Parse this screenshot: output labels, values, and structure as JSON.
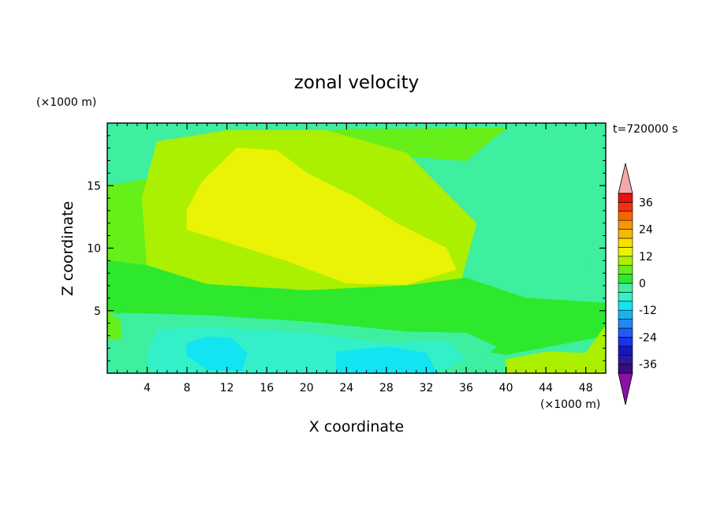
{
  "chart_data": {
    "type": "heatmap",
    "title": "zonal velocity",
    "xlabel": "X coordinate",
    "ylabel": "Z coordinate",
    "x_unit": "(×1000 m)",
    "y_unit": "(×1000 m)",
    "time_label": "t=720000 s",
    "xlim": [
      0,
      50
    ],
    "ylim": [
      0,
      20
    ],
    "x_ticks": [
      4,
      8,
      12,
      16,
      20,
      24,
      28,
      32,
      36,
      40,
      44,
      48
    ],
    "y_ticks": [
      5,
      10,
      15
    ],
    "colorbar": {
      "levels": [
        -40,
        -36,
        -32,
        -28,
        -24,
        -20,
        -16,
        -12,
        -8,
        -4,
        0,
        4,
        8,
        12,
        16,
        20,
        24,
        28,
        32,
        36,
        40
      ],
      "labels": [
        -36,
        -24,
        -12,
        0,
        12,
        24,
        36
      ],
      "colors": [
        "#3a0a80",
        "#2a1a9a",
        "#1418c0",
        "#1a32e8",
        "#1e5cf5",
        "#1e8af5",
        "#15b4f0",
        "#12e4f2",
        "#33f0c8",
        "#3fefa0",
        "#2ee82e",
        "#66ef18",
        "#aaf000",
        "#eaf205",
        "#f8e000",
        "#f8b800",
        "#f89600",
        "#f86400",
        "#f53010",
        "#e81010"
      ],
      "under_color": "#8a10a8",
      "over_color": "#f4a8a8"
    },
    "regions": [
      {
        "name": "upper-band-light-green",
        "value": 4,
        "points": [
          [
            0,
            15
          ],
          [
            4,
            15.5
          ],
          [
            10,
            18.5
          ],
          [
            24,
            19.5
          ],
          [
            40,
            19.6
          ],
          [
            36,
            17
          ],
          [
            28,
            17.5
          ],
          [
            18,
            16
          ],
          [
            10,
            12
          ],
          [
            6,
            11
          ],
          [
            4,
            8
          ],
          [
            0,
            9
          ]
        ]
      },
      {
        "name": "left-light-green-lobe",
        "value": 4,
        "points": [
          [
            0,
            8.5
          ],
          [
            1.5,
            8
          ],
          [
            1.3,
            5
          ],
          [
            0,
            4.5
          ]
        ]
      },
      {
        "name": "yellow-green-band",
        "value": 8,
        "points": [
          [
            3.5,
            14
          ],
          [
            5,
            18.5
          ],
          [
            12,
            19.4
          ],
          [
            22,
            19.4
          ],
          [
            30,
            17.6
          ],
          [
            37,
            12
          ],
          [
            35.5,
            7.5
          ],
          [
            30,
            6.7
          ],
          [
            24,
            6.3
          ],
          [
            18,
            6.8
          ],
          [
            10,
            7
          ],
          [
            4,
            8.5
          ]
        ]
      },
      {
        "name": "yellow-core",
        "value": 12,
        "points": [
          [
            8,
            13
          ],
          [
            9.5,
            15.3
          ],
          [
            13,
            18
          ],
          [
            17,
            17.8
          ],
          [
            20,
            16
          ],
          [
            25,
            14
          ],
          [
            29,
            12
          ],
          [
            34,
            10
          ],
          [
            35,
            8.3
          ],
          [
            30,
            7.1
          ],
          [
            24,
            7.2
          ],
          [
            18,
            9
          ],
          [
            12,
            10.5
          ],
          [
            8,
            11.5
          ]
        ]
      },
      {
        "name": "mid-green-belt",
        "value": 0,
        "points": [
          [
            0,
            9
          ],
          [
            4,
            8.6
          ],
          [
            10,
            7.1
          ],
          [
            20,
            6.6
          ],
          [
            30,
            7
          ],
          [
            36,
            7.6
          ],
          [
            42,
            6
          ],
          [
            50,
            5.6
          ],
          [
            50,
            3
          ],
          [
            40,
            1.5
          ],
          [
            30,
            2.6
          ],
          [
            20,
            3.8
          ],
          [
            10,
            4.5
          ],
          [
            2,
            4.6
          ],
          [
            0,
            5
          ]
        ]
      },
      {
        "name": "lower-right-yellow-green",
        "value": 8,
        "points": [
          [
            40,
            1.1
          ],
          [
            44,
            1.7
          ],
          [
            48,
            1.6
          ],
          [
            50,
            3.8
          ],
          [
            50,
            0
          ],
          [
            40,
            0
          ]
        ]
      },
      {
        "name": "lower-left-light-green-pocket",
        "value": 4,
        "points": [
          [
            0,
            4.6
          ],
          [
            1.5,
            4.3
          ],
          [
            1.3,
            2.7
          ],
          [
            0,
            2.8
          ]
        ]
      },
      {
        "name": "cyan-green-lower-layer",
        "value": -4,
        "points": [
          [
            1.3,
            4.8
          ],
          [
            10,
            4.6
          ],
          [
            20,
            4.1
          ],
          [
            30,
            3.3
          ],
          [
            36,
            3.2
          ],
          [
            39,
            2.1
          ],
          [
            37,
            0.7
          ],
          [
            30,
            0.9
          ],
          [
            20,
            1.1
          ],
          [
            10,
            1.2
          ],
          [
            3,
            1.1
          ],
          [
            1.5,
            2.5
          ]
        ]
      },
      {
        "name": "cyan-lower-layer",
        "value": -8,
        "points": [
          [
            5,
            3.5
          ],
          [
            10,
            3.7
          ],
          [
            20,
            3.2
          ],
          [
            28,
            2.4
          ],
          [
            34,
            2.6
          ],
          [
            36,
            1.2
          ],
          [
            33,
            0
          ],
          [
            4.5,
            0
          ],
          [
            4,
            1.4
          ]
        ]
      },
      {
        "name": "light-blue-blob-left",
        "value": -12,
        "points": [
          [
            8,
            2.4
          ],
          [
            10,
            2.9
          ],
          [
            12.5,
            2.8
          ],
          [
            14,
            1.6
          ],
          [
            13.5,
            0.2
          ],
          [
            10,
            0.3
          ],
          [
            8,
            1.4
          ]
        ]
      },
      {
        "name": "light-blue-blob-right",
        "value": -12,
        "points": [
          [
            23,
            1.7
          ],
          [
            28,
            2.1
          ],
          [
            32,
            1.6
          ],
          [
            33,
            0
          ],
          [
            23,
            0
          ]
        ]
      },
      {
        "name": "upper-right-cyan-green",
        "value": -4,
        "points": [
          [
            40.5,
            19.9
          ],
          [
            44,
            20
          ],
          [
            50,
            20
          ],
          [
            50,
            10
          ],
          [
            47,
            7.6
          ],
          [
            43,
            8.2
          ],
          [
            41,
            12
          ],
          [
            40.3,
            16
          ]
        ]
      }
    ]
  }
}
